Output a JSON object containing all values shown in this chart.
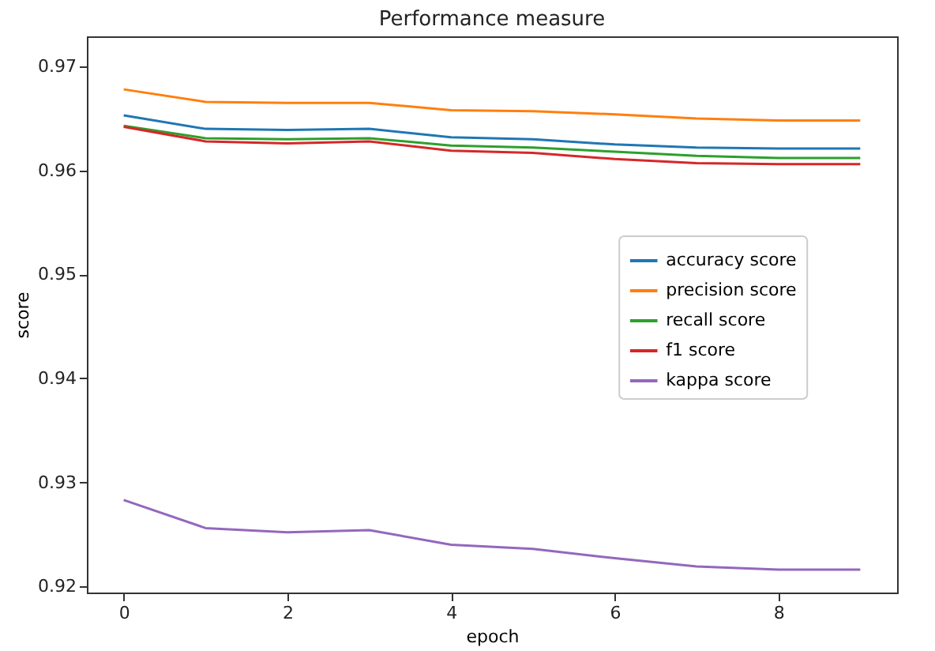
{
  "chart_data": {
    "type": "line",
    "title": "Performance measure",
    "xlabel": "epoch",
    "ylabel": "score",
    "x": [
      0,
      1,
      2,
      3,
      4,
      5,
      6,
      7,
      8,
      9
    ],
    "xlim": [
      -0.45,
      9.45
    ],
    "xticks": [
      0,
      2,
      4,
      6,
      8
    ],
    "ylim": [
      0.9194,
      0.9729
    ],
    "yticks": [
      0.92,
      0.93,
      0.94,
      0.95,
      0.96,
      0.97
    ],
    "legend": "right",
    "grid": false,
    "series": [
      {
        "name": "accuracy score",
        "color": "#1f77b4",
        "values": [
          0.9653,
          0.964,
          0.9639,
          0.964,
          0.9632,
          0.963,
          0.9625,
          0.9622,
          0.9621,
          0.9621
        ]
      },
      {
        "name": "precision score",
        "color": "#ff7f0e",
        "values": [
          0.9678,
          0.9666,
          0.9665,
          0.9665,
          0.9658,
          0.9657,
          0.9654,
          0.965,
          0.9648,
          0.9648
        ]
      },
      {
        "name": "recall score",
        "color": "#2ca02c",
        "values": [
          0.9643,
          0.9631,
          0.963,
          0.9631,
          0.9624,
          0.9622,
          0.9618,
          0.9614,
          0.9612,
          0.9612
        ]
      },
      {
        "name": "f1 score",
        "color": "#d62728",
        "values": [
          0.9642,
          0.9628,
          0.9626,
          0.9628,
          0.9619,
          0.9617,
          0.9611,
          0.9607,
          0.9606,
          0.9606
        ]
      },
      {
        "name": "kappa score",
        "color": "#9467bd",
        "values": [
          0.9283,
          0.9256,
          0.9252,
          0.9254,
          0.924,
          0.9236,
          0.9227,
          0.9219,
          0.9216,
          0.9216
        ]
      }
    ]
  }
}
